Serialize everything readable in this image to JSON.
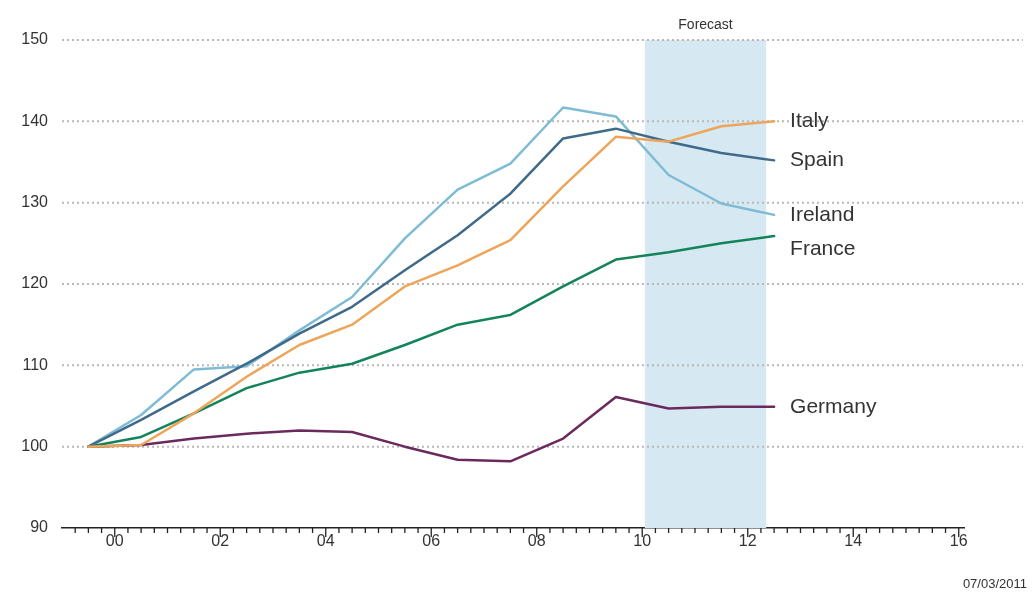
{
  "chart_data": {
    "type": "line",
    "x": [
      -0.5,
      0.5,
      1.5,
      2.5,
      3.5,
      4.5,
      5.5,
      6.5,
      7.5,
      8.5,
      9.5,
      10.5,
      11.5,
      12.5
    ],
    "series": [
      {
        "name": "Italy",
        "color": "#eda55a",
        "values": [
          100,
          100.2,
          104.1,
          108.6,
          112.5,
          115,
          119.7,
          122.3,
          125.4,
          132,
          138.1,
          137.5,
          139.4,
          140
        ]
      },
      {
        "name": "Spain",
        "color": "#3f6a8a",
        "values": [
          100,
          103.3,
          106.8,
          110.2,
          113.9,
          117.2,
          121.7,
          126,
          131.1,
          137.9,
          139.1,
          137.5,
          136.1,
          135.2
        ]
      },
      {
        "name": "Ireland",
        "color": "#7fbcd4",
        "values": [
          100,
          103.9,
          109.5,
          109.9,
          114.3,
          118.4,
          125.6,
          131.6,
          134.8,
          141.7,
          140.6,
          133.4,
          129.9,
          128.5
        ]
      },
      {
        "name": "France",
        "color": "#13845a",
        "values": [
          100,
          101.2,
          104.1,
          107.2,
          109.1,
          110.2,
          112.5,
          115,
          116.2,
          119.7,
          123,
          123.9,
          125,
          125.9
        ]
      },
      {
        "name": "Germany",
        "color": "#6b2a5e",
        "values": [
          100,
          100.2,
          101,
          101.6,
          102,
          101.8,
          100,
          98.4,
          98.2,
          101,
          106.1,
          104.7,
          104.9,
          104.9
        ]
      }
    ],
    "xlim": [
      -1,
      16.1
    ],
    "xticks": [
      {
        "value": -0.75,
        "label": null
      },
      {
        "value": -0.5,
        "label": null
      },
      {
        "value": -0.25,
        "label": null
      },
      {
        "value": 0,
        "label": "00"
      },
      {
        "value": 0.25,
        "label": null
      },
      {
        "value": 0.5,
        "label": null
      },
      {
        "value": 0.75,
        "label": null
      },
      {
        "value": 1,
        "label": null
      },
      {
        "value": 1.25,
        "label": null
      },
      {
        "value": 1.5,
        "label": null
      },
      {
        "value": 1.75,
        "label": null
      },
      {
        "value": 2,
        "label": "02"
      },
      {
        "value": 2.25,
        "label": null
      },
      {
        "value": 2.5,
        "label": null
      },
      {
        "value": 2.75,
        "label": null
      },
      {
        "value": 3,
        "label": null
      },
      {
        "value": 3.25,
        "label": null
      },
      {
        "value": 3.5,
        "label": null
      },
      {
        "value": 3.75,
        "label": null
      },
      {
        "value": 4,
        "label": "04"
      },
      {
        "value": 4.25,
        "label": null
      },
      {
        "value": 4.5,
        "label": null
      },
      {
        "value": 4.75,
        "label": null
      },
      {
        "value": 5,
        "label": null
      },
      {
        "value": 5.25,
        "label": null
      },
      {
        "value": 5.5,
        "label": null
      },
      {
        "value": 5.75,
        "label": null
      },
      {
        "value": 6,
        "label": "06"
      },
      {
        "value": 6.25,
        "label": null
      },
      {
        "value": 6.5,
        "label": null
      },
      {
        "value": 6.75,
        "label": null
      },
      {
        "value": 7,
        "label": null
      },
      {
        "value": 7.25,
        "label": null
      },
      {
        "value": 7.5,
        "label": null
      },
      {
        "value": 7.75,
        "label": null
      },
      {
        "value": 8,
        "label": "08"
      },
      {
        "value": 8.25,
        "label": null
      },
      {
        "value": 8.5,
        "label": null
      },
      {
        "value": 8.75,
        "label": null
      },
      {
        "value": 9,
        "label": null
      },
      {
        "value": 9.25,
        "label": null
      },
      {
        "value": 9.5,
        "label": null
      },
      {
        "value": 9.75,
        "label": null
      },
      {
        "value": 10,
        "label": "10"
      },
      {
        "value": 10.25,
        "label": null
      },
      {
        "value": 10.5,
        "label": null
      },
      {
        "value": 10.75,
        "label": null
      },
      {
        "value": 11,
        "label": null
      },
      {
        "value": 11.25,
        "label": null
      },
      {
        "value": 11.5,
        "label": null
      },
      {
        "value": 11.75,
        "label": null
      },
      {
        "value": 12,
        "label": "12"
      },
      {
        "value": 12.25,
        "label": null
      },
      {
        "value": 12.5,
        "label": null
      },
      {
        "value": 12.75,
        "label": null
      },
      {
        "value": 13,
        "label": null
      },
      {
        "value": 13.25,
        "label": null
      },
      {
        "value": 13.5,
        "label": null
      },
      {
        "value": 13.75,
        "label": null
      },
      {
        "value": 14,
        "label": "14"
      },
      {
        "value": 14.25,
        "label": null
      },
      {
        "value": 14.5,
        "label": null
      },
      {
        "value": 14.75,
        "label": null
      },
      {
        "value": 15,
        "label": null
      },
      {
        "value": 15.25,
        "label": null
      },
      {
        "value": 15.5,
        "label": null
      },
      {
        "value": 15.75,
        "label": null
      },
      {
        "value": 16,
        "label": "16"
      }
    ],
    "ylim": [
      90,
      150
    ],
    "yticks": [
      90,
      100,
      110,
      120,
      130,
      140,
      150
    ],
    "grid": "y",
    "legend": false,
    "marker": "none",
    "line_style": "solid",
    "bands": [
      {
        "axis": "x",
        "from": 10.05,
        "to": 12.35,
        "label": "Forecast",
        "color": "#d6e9f2"
      }
    ],
    "annotations": [
      "07/03/2011"
    ]
  }
}
